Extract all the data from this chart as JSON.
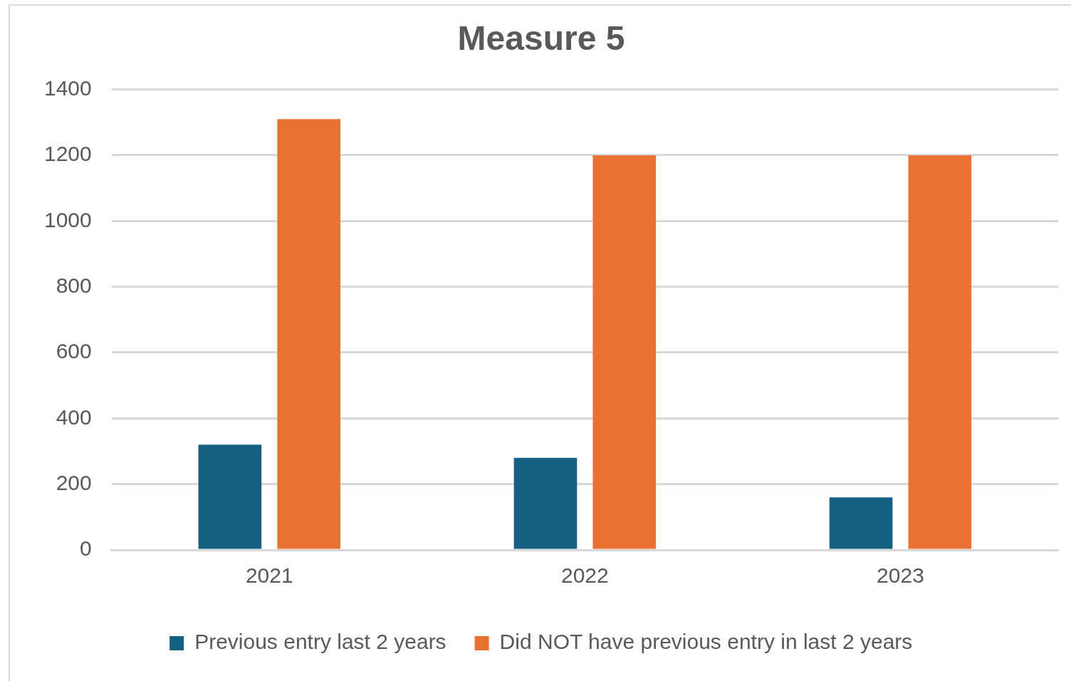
{
  "chart_data": {
    "type": "bar",
    "title": "Measure 5",
    "categories": [
      "2021",
      "2022",
      "2023"
    ],
    "series": [
      {
        "name": "Previous entry last 2 years",
        "color": "#156082",
        "values": [
          320,
          280,
          160
        ]
      },
      {
        "name": "Did NOT have previous entry in last 2 years",
        "color": "#e97132",
        "values": [
          1310,
          1200,
          1200
        ]
      }
    ],
    "ylim": [
      0,
      1400
    ],
    "yticks": [
      0,
      200,
      400,
      600,
      800,
      1000,
      1200,
      1400
    ],
    "grid": "y",
    "legend": "bottom"
  }
}
